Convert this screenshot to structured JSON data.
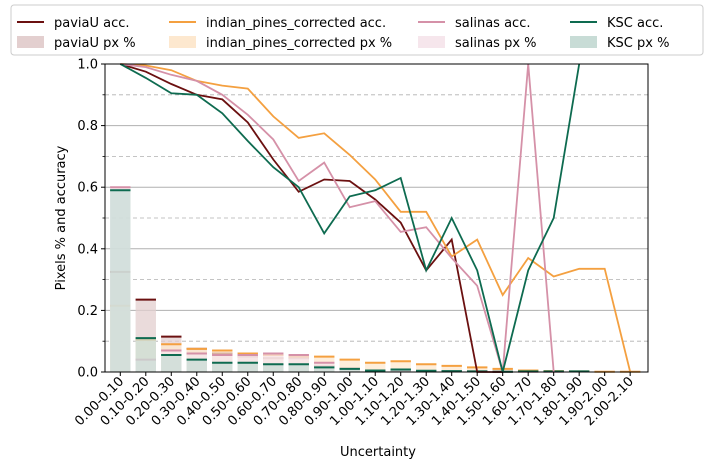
{
  "chart_data": {
    "type": "bar+line",
    "title": "",
    "xlabel": "Uncertainty",
    "ylabel": "Pixels % and accuracy",
    "ylim": [
      0,
      1.0
    ],
    "yticks": [
      "0.0",
      "0.2",
      "0.4",
      "0.6",
      "0.8",
      "1.0"
    ],
    "ytick_values": [
      0,
      0.2,
      0.4,
      0.6,
      0.8,
      1.0
    ],
    "grid": "horizontal: solid at major ticks, dashed at minor ticks",
    "legend_position": "top, 4 columns, above plot",
    "categories": [
      "0.00-0.10",
      "0.10-0.20",
      "0.20-0.30",
      "0.30-0.40",
      "0.40-0.50",
      "0.50-0.60",
      "0.60-0.70",
      "0.70-0.80",
      "0.80-0.90",
      "0.90-1.00",
      "1.00-1.10",
      "1.10-1.20",
      "1.20-1.30",
      "1.30-1.40",
      "1.40-1.50",
      "1.50-1.60",
      "1.60-1.70",
      "1.70-1.80",
      "1.80-1.90",
      "1.90-2.00",
      "2.00-2.10"
    ],
    "series": [
      {
        "name": "paviaU",
        "acc_label": "paviaU acc.",
        "px_label": "paviaU px %",
        "line_color": "#6b1010",
        "bar_color": "#e3cfcf",
        "acc": [
          1.0,
          0.975,
          0.935,
          0.9,
          0.885,
          0.81,
          0.69,
          0.585,
          0.625,
          0.62,
          0.56,
          0.485,
          0.33,
          0.43,
          0.0,
          0.0,
          null,
          null,
          null,
          null,
          null
        ],
        "px": [
          0.325,
          0.235,
          0.115,
          0.075,
          0.06,
          0.05,
          0.045,
          0.045,
          0.02,
          0.01,
          0.005,
          0.005,
          0.003,
          0.003,
          0.002,
          0.001,
          0,
          0,
          0,
          0,
          0
        ]
      },
      {
        "name": "indian_pines_corrected",
        "acc_label": "indian_pines_corrected acc.",
        "px_label": "indian_pines_corrected px %",
        "line_color": "#f4a040",
        "bar_color": "#fde8cf",
        "acc": [
          1.0,
          0.995,
          0.98,
          0.945,
          0.93,
          0.92,
          0.83,
          0.76,
          0.775,
          0.705,
          0.625,
          0.52,
          0.52,
          0.375,
          0.43,
          0.25,
          0.37,
          0.31,
          0.335,
          0.335,
          0.0
        ],
        "px": [
          0.215,
          0.105,
          0.09,
          0.075,
          0.07,
          0.06,
          0.055,
          0.05,
          0.05,
          0.04,
          0.03,
          0.035,
          0.025,
          0.02,
          0.015,
          0.01,
          0.005,
          0.003,
          0.002,
          0.001,
          0.001
        ]
      },
      {
        "name": "salinas",
        "acc_label": "salinas acc.",
        "px_label": "salinas px %",
        "line_color": "#d591a8",
        "bar_color": "#f6e6ec",
        "acc": [
          1.0,
          0.99,
          0.965,
          0.945,
          0.9,
          0.835,
          0.755,
          0.62,
          0.68,
          0.535,
          0.555,
          0.455,
          0.47,
          0.37,
          0.28,
          0.0,
          1.0,
          0.0,
          null,
          null,
          null
        ],
        "px": [
          0.6,
          0.04,
          0.07,
          0.06,
          0.055,
          0.055,
          0.06,
          0.055,
          0.03,
          0.01,
          0.005,
          0.005,
          0.003,
          0.002,
          0.002,
          0.001,
          0.001,
          0.001,
          0,
          0,
          0
        ]
      },
      {
        "name": "KSC",
        "acc_label": "KSC acc.",
        "px_label": "KSC px %",
        "line_color": "#0e6b50",
        "bar_color": "#c8dcd6",
        "acc": [
          1.0,
          0.955,
          0.905,
          0.9,
          0.84,
          0.75,
          0.665,
          0.6,
          0.45,
          0.57,
          0.59,
          0.63,
          0.33,
          0.5,
          0.33,
          0.0,
          0.33,
          0.5,
          1.0,
          null,
          null
        ],
        "px": [
          0.59,
          0.11,
          0.055,
          0.04,
          0.03,
          0.03,
          0.025,
          0.025,
          0.015,
          0.01,
          0.005,
          0.008,
          0.004,
          0.003,
          0.002,
          0.001,
          0.002,
          0.002,
          0.002,
          0,
          0
        ]
      }
    ]
  }
}
